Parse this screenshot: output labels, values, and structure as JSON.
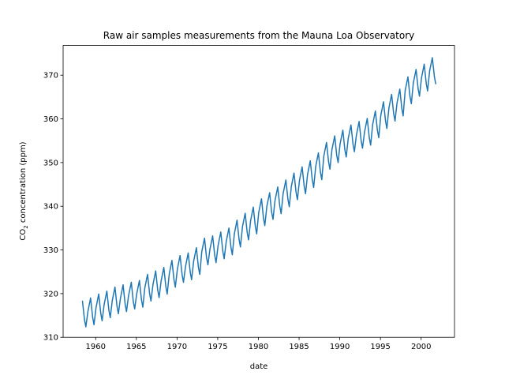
{
  "chart_data": {
    "type": "line",
    "title": "Raw air samples measurements from the Mauna Loa Observatory",
    "xlabel": "date",
    "ylabel_main": "CO",
    "ylabel_sub": "2",
    "ylabel_rest": " concentration (ppm)",
    "xlim": [
      1956.0,
      2004.1
    ],
    "ylim": [
      310,
      376.8
    ],
    "xticks": [
      1960,
      1965,
      1970,
      1975,
      1980,
      1985,
      1990,
      1995,
      2000
    ],
    "yticks": [
      310,
      320,
      330,
      340,
      350,
      360,
      370
    ],
    "grid": false,
    "color": "#1f77b4",
    "sample_months": [
      1,
      5,
      8,
      10
    ],
    "series": [
      {
        "year": 1958,
        "values": [
          null,
          318.3,
          314.0,
          312.4
        ]
      },
      {
        "year": 1959,
        "values": [
          315.9,
          319.0,
          314.6,
          312.9
        ]
      },
      {
        "year": 1960,
        "values": [
          316.8,
          319.9,
          315.5,
          313.8
        ]
      },
      {
        "year": 1961,
        "values": [
          317.5,
          320.6,
          316.2,
          314.5
        ]
      },
      {
        "year": 1962,
        "values": [
          318.4,
          321.5,
          317.1,
          315.4
        ]
      },
      {
        "year": 1963,
        "values": [
          318.9,
          322.0,
          317.6,
          315.9
        ]
      },
      {
        "year": 1964,
        "values": [
          319.5,
          322.6,
          318.2,
          316.5
        ]
      },
      {
        "year": 1965,
        "values": [
          319.9,
          323.0,
          318.6,
          316.9
        ]
      },
      {
        "year": 1966,
        "values": [
          321.3,
          324.4,
          320.0,
          318.3
        ]
      },
      {
        "year": 1967,
        "values": [
          322.1,
          325.2,
          320.8,
          319.1
        ]
      },
      {
        "year": 1968,
        "values": [
          322.9,
          326.0,
          321.6,
          319.9
        ]
      },
      {
        "year": 1969,
        "values": [
          324.5,
          327.6,
          323.2,
          321.5
        ]
      },
      {
        "year": 1970,
        "values": [
          325.6,
          328.7,
          324.3,
          322.6
        ]
      },
      {
        "year": 1971,
        "values": [
          326.2,
          329.3,
          324.9,
          323.2
        ]
      },
      {
        "year": 1972,
        "values": [
          327.4,
          330.5,
          326.1,
          324.4
        ]
      },
      {
        "year": 1973,
        "values": [
          329.6,
          332.7,
          328.3,
          326.6
        ]
      },
      {
        "year": 1974,
        "values": [
          330.1,
          333.2,
          328.8,
          327.1
        ]
      },
      {
        "year": 1975,
        "values": [
          331.0,
          334.1,
          329.7,
          328.0
        ]
      },
      {
        "year": 1976,
        "values": [
          331.9,
          335.0,
          330.6,
          328.9
        ]
      },
      {
        "year": 1977,
        "values": [
          333.7,
          336.8,
          332.4,
          330.7
        ]
      },
      {
        "year": 1978,
        "values": [
          335.3,
          338.4,
          334.0,
          332.3
        ]
      },
      {
        "year": 1979,
        "values": [
          336.7,
          339.8,
          335.4,
          333.7
        ]
      },
      {
        "year": 1980,
        "values": [
          338.6,
          341.7,
          337.3,
          335.6
        ]
      },
      {
        "year": 1981,
        "values": [
          340.0,
          343.1,
          338.7,
          337.0
        ]
      },
      {
        "year": 1982,
        "values": [
          341.3,
          344.4,
          340.0,
          338.3
        ]
      },
      {
        "year": 1983,
        "values": [
          342.9,
          346.0,
          341.6,
          339.9
        ]
      },
      {
        "year": 1984,
        "values": [
          344.5,
          347.6,
          343.2,
          341.5
        ]
      },
      {
        "year": 1985,
        "values": [
          345.9,
          349.0,
          344.6,
          342.9
        ]
      },
      {
        "year": 1986,
        "values": [
          347.3,
          350.4,
          346.0,
          344.3
        ]
      },
      {
        "year": 1987,
        "values": [
          349.1,
          352.2,
          347.8,
          346.1
        ]
      },
      {
        "year": 1988,
        "values": [
          351.5,
          354.6,
          350.2,
          348.5
        ]
      },
      {
        "year": 1989,
        "values": [
          353.0,
          356.1,
          351.7,
          350.0
        ]
      },
      {
        "year": 1990,
        "values": [
          354.3,
          357.4,
          353.0,
          351.3
        ]
      },
      {
        "year": 1991,
        "values": [
          355.5,
          358.6,
          354.2,
          352.5
        ]
      },
      {
        "year": 1992,
        "values": [
          356.3,
          359.4,
          355.0,
          353.3
        ]
      },
      {
        "year": 1993,
        "values": [
          357.0,
          360.1,
          355.7,
          354.0
        ]
      },
      {
        "year": 1994,
        "values": [
          358.7,
          361.8,
          357.4,
          355.7
        ]
      },
      {
        "year": 1995,
        "values": [
          360.8,
          363.9,
          359.5,
          357.8
        ]
      },
      {
        "year": 1996,
        "values": [
          362.5,
          365.6,
          361.2,
          359.5
        ]
      },
      {
        "year": 1997,
        "values": [
          363.7,
          366.8,
          362.4,
          360.7
        ]
      },
      {
        "year": 1998,
        "values": [
          366.5,
          369.6,
          365.2,
          363.5
        ]
      },
      {
        "year": 1999,
        "values": [
          368.2,
          371.3,
          366.9,
          365.2
        ]
      },
      {
        "year": 2000,
        "values": [
          369.4,
          372.5,
          368.1,
          366.4
        ]
      },
      {
        "year": 2001,
        "values": [
          371.0,
          374.0,
          369.7,
          368.0
        ]
      }
    ]
  }
}
